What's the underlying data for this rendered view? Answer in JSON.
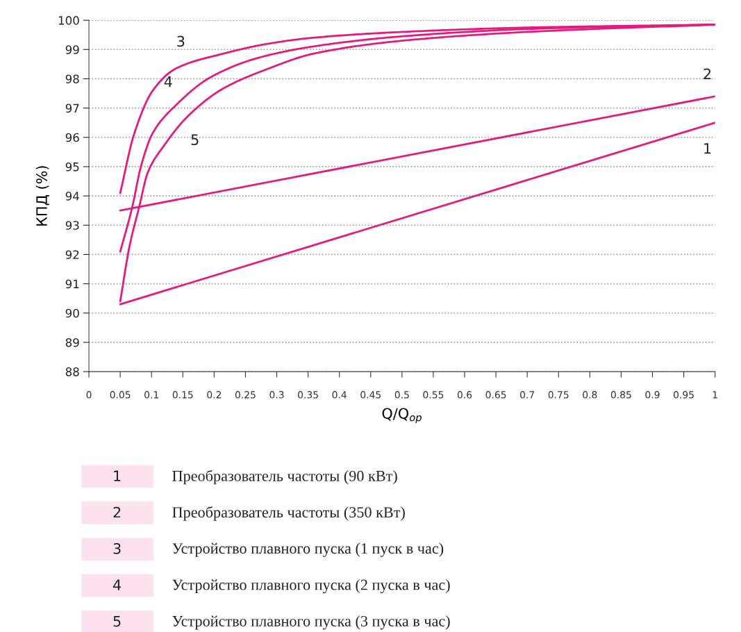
{
  "chart_data": {
    "type": "line",
    "xlabel": "Q/Q$_{op}$",
    "ylabel": "КПД (%)",
    "xlim": [
      0,
      1
    ],
    "ylim": [
      88,
      100
    ],
    "xticks": [
      0,
      0.05,
      0.1,
      0.15,
      0.2,
      0.25,
      0.3,
      0.35,
      0.4,
      0.45,
      0.5,
      0.55,
      0.6,
      0.65,
      0.7,
      0.75,
      0.8,
      0.85,
      0.9,
      0.95,
      1
    ],
    "yticks": [
      88,
      89,
      90,
      91,
      92,
      93,
      94,
      95,
      96,
      97,
      98,
      99,
      100
    ],
    "grid": "y",
    "legend": "bottom",
    "marker": "none",
    "line_style": "solid",
    "series": [
      {
        "name": "Преобразователь частоты (90 кВт)",
        "color": "#e6197f",
        "x": [
          0.05,
          1
        ],
        "values": [
          90.3,
          96.5
        ]
      },
      {
        "name": "Преобразователь частоты (350 кВт)",
        "color": "#e6197f",
        "x": [
          0.05,
          1
        ],
        "values": [
          93.5,
          97.4
        ]
      },
      {
        "name": "Устройство плавного пуска (1 пуск в час)",
        "color": "#e6197f",
        "x": [
          0.05,
          0.072,
          0.102,
          0.139,
          0.213,
          0.287,
          0.357,
          0.5,
          0.7,
          1
        ],
        "values": [
          94.1,
          96.1,
          97.6,
          98.35,
          98.85,
          99.2,
          99.4,
          99.6,
          99.75,
          99.85
        ]
      },
      {
        "name": "Устройство плавного пуска (2 пуска в час)",
        "color": "#e6197f",
        "x": [
          0.05,
          0.069,
          0.083,
          0.102,
          0.139,
          0.194,
          0.268,
          0.357,
          0.5,
          0.7,
          1
        ],
        "values": [
          92.1,
          93.6,
          95.0,
          96.15,
          97.1,
          98.05,
          98.7,
          99.1,
          99.45,
          99.7,
          99.85
        ]
      },
      {
        "name": "Устройство плавного пуска (3 пуска в час)",
        "color": "#e6197f",
        "x": [
          0.05,
          0.065,
          0.08,
          0.094,
          0.121,
          0.157,
          0.213,
          0.287,
          0.357,
          0.5,
          0.7,
          1
        ],
        "values": [
          90.4,
          92.3,
          93.6,
          94.8,
          95.75,
          96.7,
          97.65,
          98.35,
          98.85,
          99.3,
          99.6,
          99.85
        ]
      }
    ],
    "annotations": [
      "1",
      "2",
      "3",
      "4",
      "5"
    ]
  }
}
